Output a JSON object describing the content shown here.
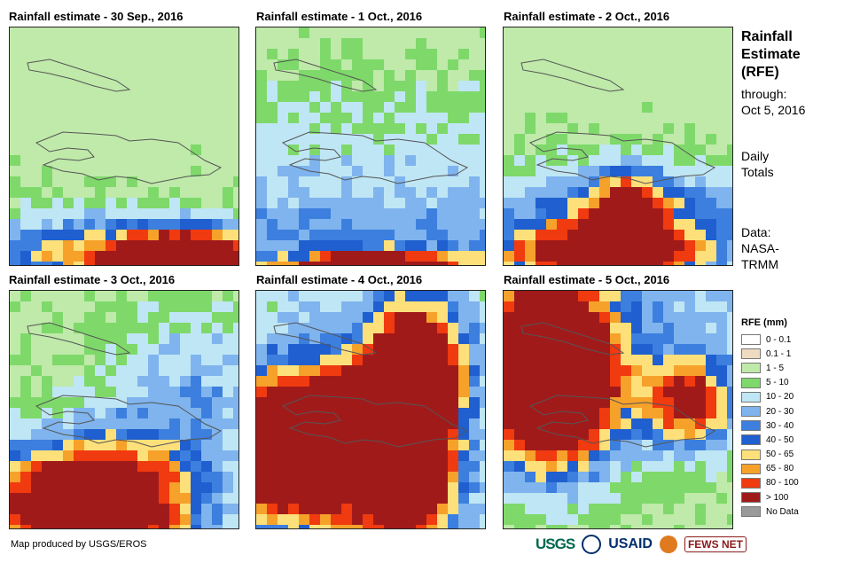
{
  "panels": [
    {
      "title": "Rainfall estimate - 30 Sep., 2016"
    },
    {
      "title": "Rainfall estimate - 1 Oct., 2016"
    },
    {
      "title": "Rainfall estimate - 2 Oct., 2016"
    },
    {
      "title": "Rainfall estimate - 3 Oct., 2016"
    },
    {
      "title": "Rainfall estimate - 4 Oct., 2016"
    },
    {
      "title": "Rainfall estimate - 5 Oct., 2016"
    }
  ],
  "side": {
    "title_line1": "Rainfall",
    "title_line2": "Estimate",
    "title_line3": "(RFE)",
    "through_label": "through:",
    "through_date": "Oct 5, 2016",
    "totals_line1": "Daily",
    "totals_line2": "Totals",
    "data_line1": "Data:",
    "data_line2": "NASA-",
    "data_line3": "TRMM"
  },
  "legend": {
    "title": "RFE (mm)",
    "items": [
      {
        "label": "0 - 0.1",
        "color": "#ffffff"
      },
      {
        "label": "0.1 - 1",
        "color": "#efdcc0"
      },
      {
        "label": "1 - 5",
        "color": "#bfeaaa"
      },
      {
        "label": "5 - 10",
        "color": "#7ed96a"
      },
      {
        "label": "10 - 20",
        "color": "#bfe6f5"
      },
      {
        "label": "20 - 30",
        "color": "#7fb4ee"
      },
      {
        "label": "30 - 40",
        "color": "#3c7fde"
      },
      {
        "label": "40 - 50",
        "color": "#1f5fcf"
      },
      {
        "label": "50 - 65",
        "color": "#fde07a"
      },
      {
        "label": "65 - 80",
        "color": "#f6a12a"
      },
      {
        "label": "80 - 100",
        "color": "#f03a10"
      },
      {
        "label": "> 100",
        "color": "#a11a1a"
      },
      {
        "label": "No Data",
        "color": "#9a9a9a"
      }
    ]
  },
  "footer": {
    "credit": "Map produced by USGS/EROS"
  },
  "logos": {
    "usgs": "USGS",
    "usaid": "USAID",
    "fews": "FEWS NET"
  }
}
